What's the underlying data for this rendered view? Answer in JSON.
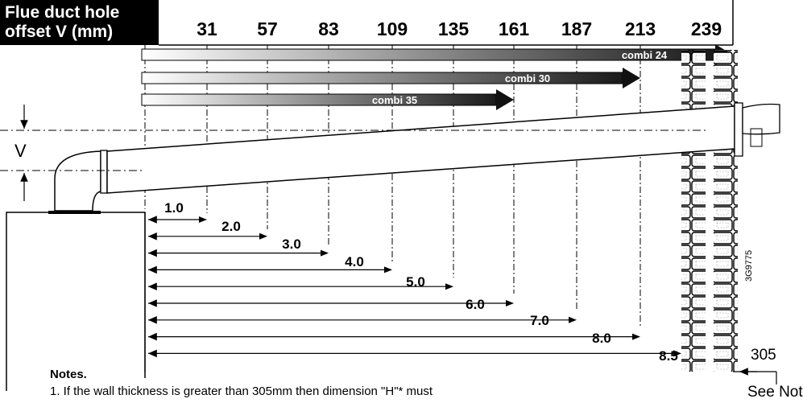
{
  "header": {
    "line1": "Flue duct hole",
    "line2": "offset V (mm)"
  },
  "offsets": [
    "31",
    "57",
    "83",
    "109",
    "135",
    "161",
    "187",
    "213",
    "239"
  ],
  "models": [
    {
      "label": "combi 24"
    },
    {
      "label": "combi 30"
    },
    {
      "label": "combi 35"
    }
  ],
  "offset_symbol": "V",
  "lengths": [
    "1.0",
    "2.0",
    "3.0",
    "4.0",
    "5.0",
    "6.0",
    "7.0",
    "8.0",
    "8.5"
  ],
  "wall": {
    "label": "305"
  },
  "side_code": "3G9775",
  "notes": {
    "title": "Notes.",
    "line1": "1.  If the wall thickness is greater than 305mm then dimension \"H\"* must"
  },
  "see_note": "See  Note"
}
